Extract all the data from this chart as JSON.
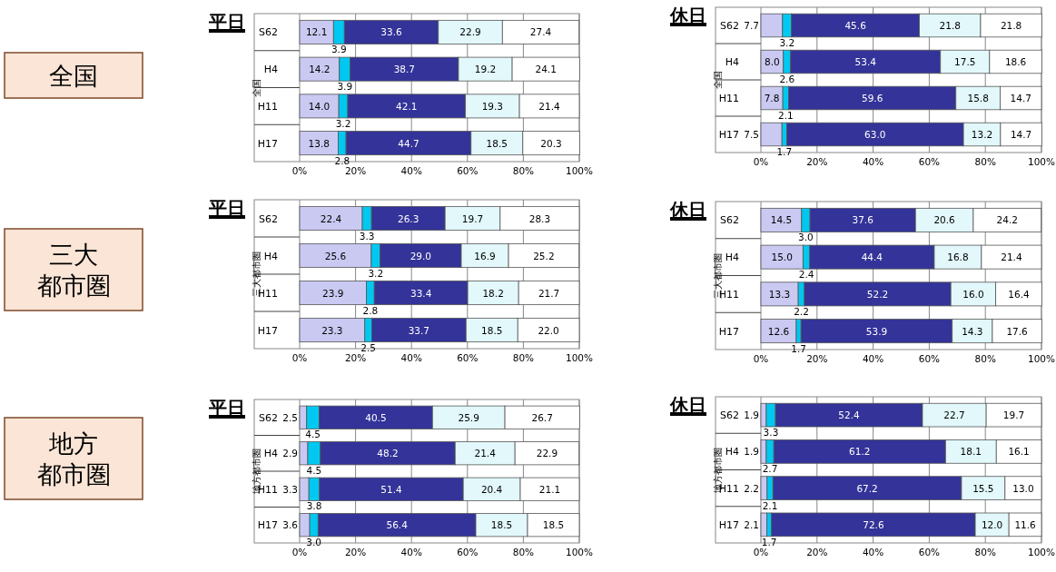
{
  "chart_data": [
    {
      "type": "bar",
      "orientation": "horizontal",
      "stacked": true,
      "title": "平日",
      "ylabel": "全国",
      "annotations": [
        "全国"
      ],
      "categories": [
        "S62",
        "H4",
        "H11",
        "H17"
      ],
      "xlim": [
        0,
        100
      ],
      "xticks": [
        {
          "value": 0,
          "label": "0%"
        },
        {
          "value": 20,
          "label": "20%"
        },
        {
          "value": 40,
          "label": "40%"
        },
        {
          "value": 60,
          "label": "60%"
        },
        {
          "value": 80,
          "label": "80%"
        },
        {
          "value": 100,
          "label": "100%"
        }
      ],
      "grid": "x",
      "series": [
        {
          "color": "#c9c9f2",
          "values": [
            12.1,
            14.2,
            14.0,
            13.8
          ],
          "value_labels": [
            "12.1",
            "14.2",
            "14.0",
            "13.8"
          ]
        },
        {
          "color": "#00c8f0",
          "values": [
            3.9,
            3.9,
            3.2,
            2.8
          ],
          "value_labels": [
            "3.9",
            "3.9",
            "3.2",
            "2.8"
          ]
        },
        {
          "color": "#333399",
          "values": [
            33.6,
            38.7,
            42.1,
            44.7
          ],
          "value_labels": [
            "33.6",
            "38.7",
            "42.1",
            "44.7"
          ]
        },
        {
          "color": "#e2f8fb",
          "values": [
            22.9,
            19.2,
            19.3,
            18.5
          ],
          "value_labels": [
            "22.9",
            "19.2",
            "19.3",
            "18.5"
          ]
        },
        {
          "color": "#ffffff",
          "values": [
            27.4,
            24.1,
            21.4,
            20.3
          ],
          "value_labels": [
            "27.4",
            "24.1",
            "21.4",
            "20.3"
          ]
        }
      ]
    },
    {
      "type": "bar",
      "orientation": "horizontal",
      "stacked": true,
      "title": "休日",
      "ylabel": "全国",
      "categories": [
        "S62",
        "H4",
        "H11",
        "H17"
      ],
      "xlim": [
        0,
        100
      ],
      "xticks": [
        {
          "value": 0,
          "label": "0%"
        },
        {
          "value": 20,
          "label": "20%"
        },
        {
          "value": 40,
          "label": "40%"
        },
        {
          "value": 60,
          "label": "60%"
        },
        {
          "value": 80,
          "label": "80%"
        },
        {
          "value": 100,
          "label": "100%"
        }
      ],
      "grid": "x",
      "series": [
        {
          "color": "#c9c9f2",
          "values": [
            7.7,
            8.0,
            7.8,
            7.5
          ],
          "value_labels": [
            "7.7",
            "8.0",
            "7.8",
            "7.5"
          ]
        },
        {
          "color": "#00c8f0",
          "values": [
            3.2,
            2.6,
            2.1,
            1.7
          ],
          "value_labels": [
            "3.2",
            "2.6",
            "2.1",
            "1.7"
          ]
        },
        {
          "color": "#333399",
          "values": [
            45.6,
            53.4,
            59.6,
            63.0
          ],
          "value_labels": [
            "45.6",
            "53.4",
            "59.6",
            "63.0"
          ]
        },
        {
          "color": "#e2f8fb",
          "values": [
            21.8,
            17.5,
            15.8,
            13.2
          ],
          "value_labels": [
            "21.8",
            "17.5",
            "15.8",
            "13.2"
          ]
        },
        {
          "color": "#ffffff",
          "values": [
            21.8,
            18.6,
            14.7,
            14.7
          ],
          "value_labels": [
            "21.8",
            "18.6",
            "14.7",
            "14.7"
          ]
        }
      ]
    },
    {
      "type": "bar",
      "orientation": "horizontal",
      "stacked": true,
      "title": "平日",
      "ylabel": "三大都市圏",
      "annotations": [
        "三大都市圏"
      ],
      "categories": [
        "S62",
        "H4",
        "H11",
        "H17"
      ],
      "xlim": [
        0,
        100
      ],
      "xticks": [
        {
          "value": 0,
          "label": "0%"
        },
        {
          "value": 20,
          "label": "20%"
        },
        {
          "value": 40,
          "label": "40%"
        },
        {
          "value": 60,
          "label": "60%"
        },
        {
          "value": 80,
          "label": "80%"
        },
        {
          "value": 100,
          "label": "100%"
        }
      ],
      "grid": "x",
      "series": [
        {
          "color": "#c9c9f2",
          "values": [
            22.4,
            25.6,
            23.9,
            23.3
          ],
          "value_labels": [
            "22.4",
            "25.6",
            "23.9",
            "23.3"
          ]
        },
        {
          "color": "#00c8f0",
          "values": [
            3.3,
            3.2,
            2.8,
            2.5
          ],
          "value_labels": [
            "3.3",
            "3.2",
            "2.8",
            "2.5"
          ]
        },
        {
          "color": "#333399",
          "values": [
            26.3,
            29.0,
            33.4,
            33.7
          ],
          "value_labels": [
            "26.3",
            "29.0",
            "33.4",
            "33.7"
          ]
        },
        {
          "color": "#e2f8fb",
          "values": [
            19.7,
            16.9,
            18.2,
            18.5
          ],
          "value_labels": [
            "19.7",
            "16.9",
            "18.2",
            "18.5"
          ]
        },
        {
          "color": "#ffffff",
          "values": [
            28.3,
            25.2,
            21.7,
            22.0
          ],
          "value_labels": [
            "28.3",
            "25.2",
            "21.7",
            "22.0"
          ]
        }
      ]
    },
    {
      "type": "bar",
      "orientation": "horizontal",
      "stacked": true,
      "title": "休日",
      "ylabel": "三大都市圏",
      "categories": [
        "S62",
        "H4",
        "H11",
        "H17"
      ],
      "xlim": [
        0,
        100
      ],
      "xticks": [
        {
          "value": 0,
          "label": "0%"
        },
        {
          "value": 20,
          "label": "20%"
        },
        {
          "value": 40,
          "label": "40%"
        },
        {
          "value": 60,
          "label": "60%"
        },
        {
          "value": 80,
          "label": "80%"
        },
        {
          "value": 100,
          "label": "100%"
        }
      ],
      "grid": "x",
      "series": [
        {
          "color": "#c9c9f2",
          "values": [
            14.5,
            15.0,
            13.3,
            12.6
          ],
          "value_labels": [
            "14.5",
            "15.0",
            "13.3",
            "12.6"
          ]
        },
        {
          "color": "#00c8f0",
          "values": [
            3.0,
            2.4,
            2.2,
            1.7
          ],
          "value_labels": [
            "3.0",
            "2.4",
            "2.2",
            "1.7"
          ]
        },
        {
          "color": "#333399",
          "values": [
            37.6,
            44.4,
            52.2,
            53.9
          ],
          "value_labels": [
            "37.6",
            "44.4",
            "52.2",
            "53.9"
          ]
        },
        {
          "color": "#e2f8fb",
          "values": [
            20.6,
            16.8,
            16.0,
            14.3
          ],
          "value_labels": [
            "20.6",
            "16.8",
            "16.0",
            "14.3"
          ]
        },
        {
          "color": "#ffffff",
          "values": [
            24.2,
            21.4,
            16.4,
            17.6
          ],
          "value_labels": [
            "24.2",
            "21.4",
            "16.4",
            "17.6"
          ]
        }
      ]
    },
    {
      "type": "bar",
      "orientation": "horizontal",
      "stacked": true,
      "title": "平日",
      "ylabel": "地方都市圏",
      "annotations": [
        "地方都市圏"
      ],
      "categories": [
        "S62",
        "H4",
        "H11",
        "H17"
      ],
      "xlim": [
        0,
        100
      ],
      "xticks": [
        {
          "value": 0,
          "label": "0%"
        },
        {
          "value": 20,
          "label": "20%"
        },
        {
          "value": 40,
          "label": "40%"
        },
        {
          "value": 60,
          "label": "60%"
        },
        {
          "value": 80,
          "label": "80%"
        },
        {
          "value": 100,
          "label": "100%"
        }
      ],
      "grid": "x",
      "series": [
        {
          "color": "#c9c9f2",
          "values": [
            2.5,
            2.9,
            3.3,
            3.6
          ],
          "value_labels": [
            "2.5",
            "2.9",
            "3.3",
            "3.6"
          ]
        },
        {
          "color": "#00c8f0",
          "values": [
            4.5,
            4.5,
            3.8,
            3.0
          ],
          "value_labels": [
            "4.5",
            "4.5",
            "3.8",
            "3.0"
          ]
        },
        {
          "color": "#333399",
          "values": [
            40.5,
            48.2,
            51.4,
            56.4
          ],
          "value_labels": [
            "40.5",
            "48.2",
            "51.4",
            "56.4"
          ]
        },
        {
          "color": "#e2f8fb",
          "values": [
            25.9,
            21.4,
            20.4,
            18.5
          ],
          "value_labels": [
            "25.9",
            "21.4",
            "20.4",
            "18.5"
          ]
        },
        {
          "color": "#ffffff",
          "values": [
            26.7,
            22.9,
            21.1,
            18.5
          ],
          "value_labels": [
            "26.7",
            "22.9",
            "21.1",
            "18.5"
          ]
        }
      ]
    },
    {
      "type": "bar",
      "orientation": "horizontal",
      "stacked": true,
      "title": "休日",
      "ylabel": "地方都市圏",
      "categories": [
        "S62",
        "H4",
        "H11",
        "H17"
      ],
      "xlim": [
        0,
        100
      ],
      "xticks": [
        {
          "value": 0,
          "label": "0%"
        },
        {
          "value": 20,
          "label": "20%"
        },
        {
          "value": 40,
          "label": "40%"
        },
        {
          "value": 60,
          "label": "60%"
        },
        {
          "value": 80,
          "label": "80%"
        },
        {
          "value": 100,
          "label": "100%"
        }
      ],
      "grid": "x",
      "series": [
        {
          "color": "#c9c9f2",
          "values": [
            1.9,
            1.9,
            2.2,
            2.1
          ],
          "value_labels": [
            "1.9",
            "1.9",
            "2.2",
            "2.1"
          ]
        },
        {
          "color": "#00c8f0",
          "values": [
            3.3,
            2.7,
            2.1,
            1.7
          ],
          "value_labels": [
            "3.3",
            "2.7",
            "2.1",
            "1.7"
          ]
        },
        {
          "color": "#333399",
          "values": [
            52.4,
            61.2,
            67.2,
            72.6
          ],
          "value_labels": [
            "52.4",
            "61.2",
            "67.2",
            "72.6"
          ]
        },
        {
          "color": "#e2f8fb",
          "values": [
            22.7,
            18.1,
            15.5,
            12.0
          ],
          "value_labels": [
            "22.7",
            "18.1",
            "15.5",
            "12.0"
          ]
        },
        {
          "color": "#ffffff",
          "values": [
            19.7,
            16.1,
            13.0,
            11.6
          ],
          "value_labels": [
            "19.7",
            "16.1",
            "13.0",
            "11.6"
          ]
        }
      ]
    }
  ]
}
